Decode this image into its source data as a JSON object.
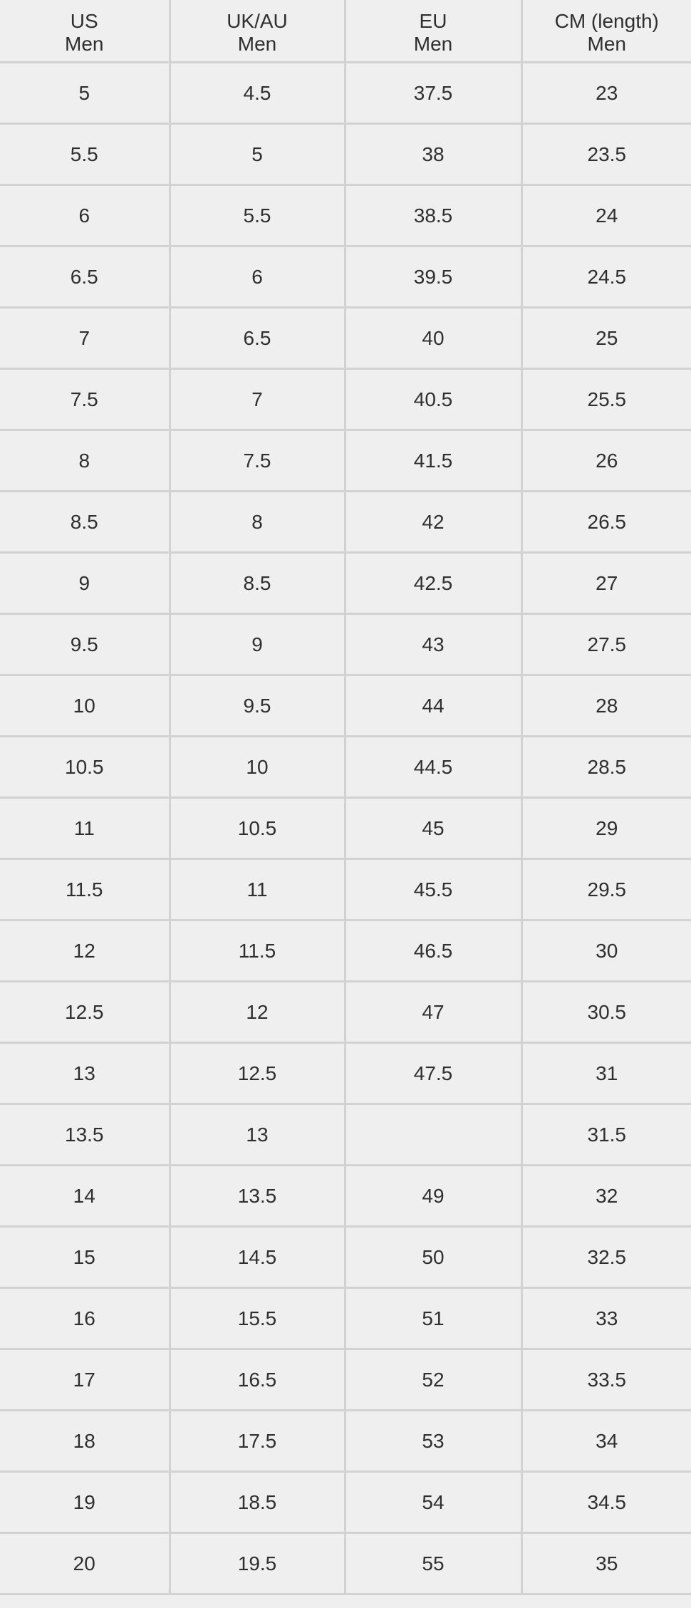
{
  "headers": [
    {
      "line1": "US",
      "line2": "Men"
    },
    {
      "line1": "UK/AU",
      "line2": "Men"
    },
    {
      "line1": "EU",
      "line2": "Men"
    },
    {
      "line1": "CM (length)",
      "line2": "Men"
    }
  ],
  "rows": [
    [
      "5",
      "4.5",
      "37.5",
      "23"
    ],
    [
      "5.5",
      "5",
      "38",
      "23.5"
    ],
    [
      "6",
      "5.5",
      "38.5",
      "24"
    ],
    [
      "6.5",
      "6",
      "39.5",
      "24.5"
    ],
    [
      "7",
      "6.5",
      "40",
      "25"
    ],
    [
      "7.5",
      "7",
      "40.5",
      "25.5"
    ],
    [
      "8",
      "7.5",
      "41.5",
      "26"
    ],
    [
      "8.5",
      "8",
      "42",
      "26.5"
    ],
    [
      "9",
      "8.5",
      "42.5",
      "27"
    ],
    [
      "9.5",
      "9",
      "43",
      "27.5"
    ],
    [
      "10",
      "9.5",
      "44",
      "28"
    ],
    [
      "10.5",
      "10",
      "44.5",
      "28.5"
    ],
    [
      "11",
      "10.5",
      "45",
      "29"
    ],
    [
      "11.5",
      "11",
      "45.5",
      "29.5"
    ],
    [
      "12",
      "11.5",
      "46.5",
      "30"
    ],
    [
      "12.5",
      "12",
      "47",
      "30.5"
    ],
    [
      "13",
      "12.5",
      "47.5",
      "31"
    ],
    [
      "13.5",
      "13",
      "",
      "31.5"
    ],
    [
      "14",
      "13.5",
      "49",
      "32"
    ],
    [
      "15",
      "14.5",
      "50",
      "32.5"
    ],
    [
      "16",
      "15.5",
      "51",
      "33"
    ],
    [
      "17",
      "16.5",
      "52",
      "33.5"
    ],
    [
      "18",
      "17.5",
      "53",
      "34"
    ],
    [
      "19",
      "18.5",
      "54",
      "34.5"
    ],
    [
      "20",
      "19.5",
      "55",
      "35"
    ]
  ]
}
